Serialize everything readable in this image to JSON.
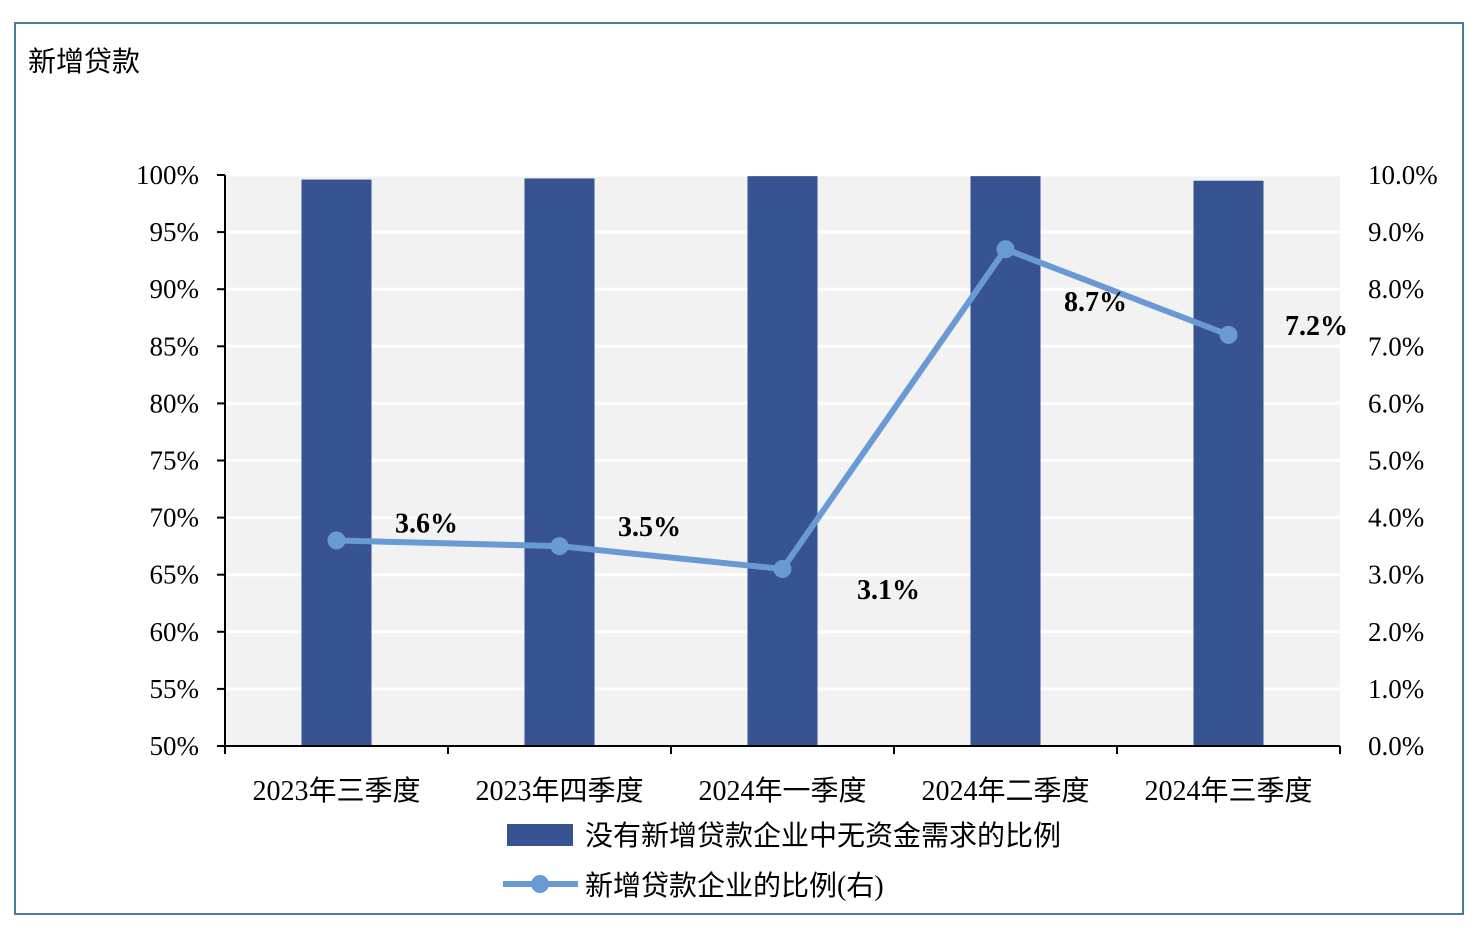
{
  "title": "新增贷款",
  "chart_data": {
    "type": "bar",
    "title": "新增贷款",
    "categories": [
      "2023年三季度",
      "2023年四季度",
      "2024年一季度",
      "2024年二季度",
      "2024年三季度"
    ],
    "series": [
      {
        "name": "没有新增贷款企业中无资金需求的比例",
        "type": "bar",
        "axis": "left",
        "color": "#375392",
        "values": [
          99.6,
          99.7,
          99.9,
          99.9,
          99.5
        ]
      },
      {
        "name": "新增贷款企业的比例(右)",
        "type": "line",
        "axis": "right",
        "color": "#6a9ad4",
        "values": [
          3.6,
          3.5,
          3.1,
          8.7,
          7.2
        ],
        "data_labels": [
          "3.6%",
          "3.5%",
          "3.1%",
          "8.7%",
          "7.2%"
        ]
      }
    ],
    "left_axis": {
      "ylim": [
        50,
        100
      ],
      "ticks": [
        "50%",
        "55%",
        "60%",
        "65%",
        "70%",
        "75%",
        "80%",
        "85%",
        "90%",
        "95%",
        "100%"
      ]
    },
    "right_axis": {
      "ylim": [
        0,
        10
      ],
      "ticks": [
        "0.0%",
        "1.0%",
        "2.0%",
        "3.0%",
        "4.0%",
        "5.0%",
        "6.0%",
        "7.0%",
        "8.0%",
        "9.0%",
        "10.0%"
      ]
    },
    "grid": true,
    "plot_background": "#f2f2f2",
    "legend_position": "bottom"
  }
}
